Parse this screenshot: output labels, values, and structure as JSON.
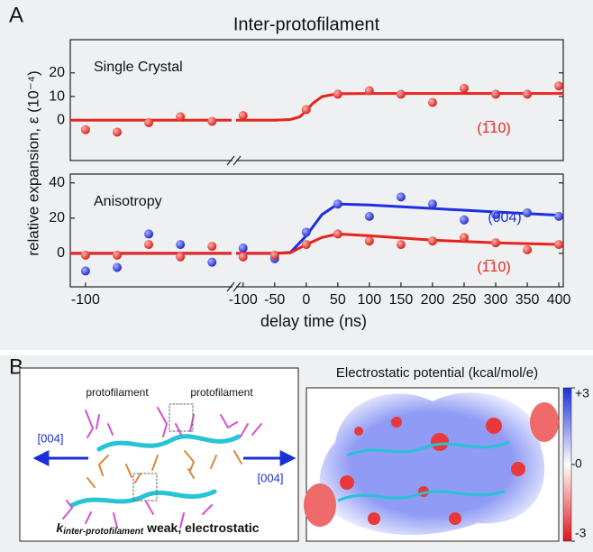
{
  "panel_labels": [
    "A",
    "B"
  ],
  "chart_data": [
    {
      "type": "scatter-fit",
      "title": "Inter-protofilament",
      "annotation": "Single Crystal",
      "ylabel": "relative expansion, ε (10⁻⁴)",
      "ylim": [
        -17,
        34
      ],
      "yticks": [
        0,
        10,
        20
      ],
      "x_segments": [
        {
          "xlim": [
            -124,
            131
          ]
        },
        {
          "xlim": [
            -111,
            407
          ]
        }
      ],
      "series": [
        {
          "name": "(1̅10)",
          "color": "#e8231c",
          "points": [
            {
              "segment": 0,
              "x": [
                -100,
                -50,
                0,
                50,
                100
              ],
              "values": [
                -4,
                -5,
                -1,
                1.5,
                -0.5
              ]
            },
            {
              "segment": 1,
              "x": [
                -100,
                0,
                50,
                100,
                150,
                200,
                250,
                300,
                350,
                400
              ],
              "values": [
                2,
                4.5,
                11,
                12.5,
                11,
                7.5,
                13.5,
                11,
                11,
                14.5
              ]
            }
          ],
          "fit": [
            {
              "segment": 0,
              "x": [
                -124,
                131
              ],
              "values": [
                0,
                0
              ]
            },
            {
              "segment": 1,
              "x": [
                -111,
                -50,
                -25,
                -10,
                0,
                10,
                25,
                50,
                100,
                407
              ],
              "values": [
                0,
                0,
                0.3,
                1.5,
                4,
                7,
                10,
                11.2,
                11.3,
                11.3
              ]
            }
          ]
        }
      ]
    },
    {
      "type": "scatter-fit",
      "annotation": "Anisotropy",
      "xlabel": "delay time (ns)",
      "ylim": [
        -19,
        45
      ],
      "yticks": [
        0,
        20,
        40
      ],
      "x_segments": [
        {
          "xlim": [
            -124,
            131
          ],
          "xticks": [
            -100
          ]
        },
        {
          "xlim": [
            -111,
            407
          ],
          "xticks": [
            -100,
            -50,
            0,
            50,
            100,
            150,
            200,
            250,
            300,
            350,
            400
          ]
        }
      ],
      "series": [
        {
          "name": "(004)",
          "color": "#1f2ee0",
          "points": [
            {
              "segment": 0,
              "x": [
                -100,
                -50,
                0,
                50,
                100
              ],
              "values": [
                -10,
                -8,
                11,
                5,
                -5
              ]
            },
            {
              "segment": 1,
              "x": [
                -100,
                -50,
                0,
                50,
                100,
                150,
                200,
                250,
                300,
                350,
                400
              ],
              "values": [
                3,
                -3,
                12,
                28,
                21,
                32,
                28,
                19,
                22,
                23,
                21
              ]
            }
          ],
          "fit": [
            {
              "segment": 0,
              "x": [
                -124,
                131
              ],
              "values": [
                0,
                0
              ]
            },
            {
              "segment": 1,
              "x": [
                -111,
                -50,
                -25,
                0,
                25,
                50,
                100,
                200,
                300,
                407
              ],
              "values": [
                0,
                0,
                0.5,
                10,
                22,
                28,
                27.5,
                25.5,
                23.5,
                21.5
              ]
            }
          ]
        },
        {
          "name": "(1̅10)",
          "color": "#e8231c",
          "points": [
            {
              "segment": 0,
              "x": [
                -100,
                -50,
                0,
                50,
                100
              ],
              "values": [
                -1,
                -1,
                5,
                -2,
                4
              ]
            },
            {
              "segment": 1,
              "x": [
                -100,
                -50,
                0,
                50,
                100,
                150,
                200,
                250,
                300,
                350,
                400
              ],
              "values": [
                -2,
                -1,
                5,
                11,
                7,
                5,
                7,
                9,
                6,
                2,
                5
              ]
            }
          ],
          "fit": [
            {
              "segment": 0,
              "x": [
                -124,
                131
              ],
              "values": [
                0,
                0
              ]
            },
            {
              "segment": 1,
              "x": [
                -111,
                -50,
                -25,
                0,
                25,
                50,
                100,
                200,
                300,
                407
              ],
              "values": [
                0,
                0,
                0.3,
                5,
                9,
                11,
                10,
                7.5,
                6,
                5
              ]
            }
          ]
        }
      ]
    }
  ],
  "panel_b": {
    "structure": {
      "labels": [
        "protofilament",
        "protofilament"
      ],
      "direction_left": "[004]",
      "direction_right": "[004]",
      "caption_symbol": "k",
      "caption_subscript": "inter-protofilament",
      "caption_text": "weak, electrostatic"
    },
    "potential_map": {
      "title": "Electrostatic potential (kcal/mol/e)",
      "clim": [
        -3,
        3
      ],
      "ticks": [
        {
          "value": 3,
          "label": "+3"
        },
        0,
        -3
      ]
    }
  }
}
